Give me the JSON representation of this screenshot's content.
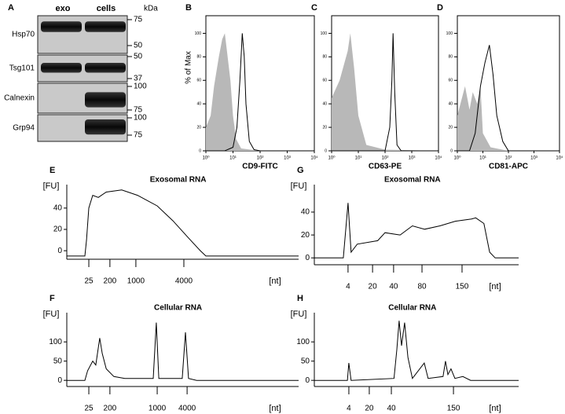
{
  "blot": {
    "label": "A",
    "columns": [
      "exo",
      "cells"
    ],
    "unit": "kDa",
    "rows": [
      {
        "name": "Hsp70",
        "markers": [
          "75",
          "50"
        ]
      },
      {
        "name": "Tsg101",
        "markers": [
          "50",
          "37"
        ]
      },
      {
        "name": "Calnexin",
        "markers": [
          "100",
          "75"
        ]
      },
      {
        "name": "Grp94",
        "markers": [
          "100",
          "75"
        ]
      }
    ]
  },
  "chart_data": [
    {
      "type": "histogram-overlay",
      "label": "B",
      "xlabel": "CD9-FITC",
      "ylabel": "% of Max",
      "log_x": true,
      "xlim": [
        1,
        10000
      ],
      "xticks": [
        {
          "value": 1,
          "label": "10⁰"
        },
        {
          "value": 10,
          "label": "10¹"
        },
        {
          "value": 100,
          "label": "10²"
        },
        {
          "value": 1000,
          "label": "10³"
        },
        {
          "value": 10000,
          "label": "10⁴"
        }
      ],
      "ylim": [
        0,
        115
      ],
      "yticks": [
        0,
        20,
        40,
        60,
        80,
        100
      ],
      "series": [
        {
          "color": "#b8b8b8",
          "fill": true,
          "x": [
            1,
            1.5,
            2,
            3,
            4,
            5,
            6,
            8,
            10,
            13,
            20,
            100,
            10000
          ],
          "values": [
            20,
            30,
            55,
            80,
            95,
            100,
            85,
            60,
            30,
            10,
            2,
            0,
            0
          ]
        },
        {
          "color": "#000000",
          "fill": false,
          "x": [
            1,
            5,
            10,
            14,
            18,
            22,
            26,
            30,
            40,
            60,
            100,
            10000
          ],
          "values": [
            0,
            0,
            3,
            20,
            60,
            100,
            80,
            40,
            8,
            1,
            0,
            0
          ]
        }
      ]
    },
    {
      "type": "histogram-overlay",
      "label": "C",
      "xlabel": "CD63-PE",
      "log_x": true,
      "xlim": [
        1,
        10000
      ],
      "xticks": [
        {
          "value": 1,
          "label": "10⁰"
        },
        {
          "value": 10,
          "label": "10¹"
        },
        {
          "value": 100,
          "label": "10²"
        },
        {
          "value": 1000,
          "label": "10³"
        },
        {
          "value": 10000,
          "label": "10⁴"
        }
      ],
      "ylim": [
        0,
        115
      ],
      "yticks": [
        0,
        20,
        40,
        60,
        80,
        100
      ],
      "series": [
        {
          "color": "#b8b8b8",
          "fill": true,
          "x": [
            1,
            2,
            4,
            5,
            7,
            10,
            20,
            100,
            10000
          ],
          "values": [
            45,
            60,
            85,
            100,
            70,
            30,
            5,
            1,
            0
          ]
        },
        {
          "color": "#000000",
          "fill": false,
          "x": [
            1,
            100,
            150,
            180,
            200,
            230,
            280,
            400,
            10000
          ],
          "values": [
            0,
            0,
            20,
            60,
            100,
            50,
            5,
            0,
            0
          ]
        }
      ]
    },
    {
      "type": "histogram-overlay",
      "label": "D",
      "xlabel": "CD81-APC",
      "log_x": true,
      "xlim": [
        1,
        10000
      ],
      "xticks": [
        {
          "value": 1,
          "label": "10⁰"
        },
        {
          "value": 10,
          "label": "10¹"
        },
        {
          "value": 100,
          "label": "10²"
        },
        {
          "value": 1000,
          "label": "10³"
        },
        {
          "value": 10000,
          "label": "10⁴"
        }
      ],
      "ylim": [
        0,
        115
      ],
      "yticks": [
        0,
        20,
        40,
        60,
        80,
        100
      ],
      "series": [
        {
          "color": "#b8b8b8",
          "fill": true,
          "x": [
            1,
            2,
            3,
            4,
            6,
            8,
            10,
            20,
            100,
            10000
          ],
          "values": [
            30,
            55,
            35,
            50,
            40,
            55,
            15,
            3,
            0,
            0
          ]
        },
        {
          "color": "#000000",
          "fill": false,
          "x": [
            1,
            3,
            5,
            8,
            12,
            18,
            25,
            35,
            60,
            100,
            10000
          ],
          "values": [
            0,
            0,
            15,
            55,
            75,
            90,
            65,
            30,
            8,
            0,
            0
          ]
        }
      ]
    },
    {
      "type": "electropherogram",
      "label": "E",
      "title": "Exosomal RNA",
      "ylabel": "[FU]",
      "xlabel": "[nt]",
      "xlim": [
        0,
        100
      ],
      "xticks": [
        {
          "value": 9.5,
          "label": "25"
        },
        {
          "value": 18.6,
          "label": "200"
        },
        {
          "value": 29.8,
          "label": "1000"
        },
        {
          "value": 50.5,
          "label": "4000"
        }
      ],
      "ylim": [
        -8,
        62
      ],
      "yticks": [
        0,
        20,
        40
      ],
      "series": [
        {
          "color": "#000000",
          "fill": false,
          "x": [
            0,
            7.8,
            8.5,
            9.5,
            11.2,
            13.6,
            17,
            23.7,
            30.5,
            39,
            45.8,
            52.5,
            57.6,
            60,
            100
          ],
          "values": [
            -5,
            -5,
            10,
            40,
            52,
            50,
            55,
            57,
            52,
            42,
            28,
            12,
            0,
            -5,
            -5
          ]
        }
      ]
    },
    {
      "type": "electropherogram",
      "label": "F",
      "title": "Cellular RNA",
      "ylabel": "[FU]",
      "xlabel": "[nt]",
      "xlim": [
        0,
        100
      ],
      "xticks": [
        {
          "value": 9.5,
          "label": "25"
        },
        {
          "value": 18.6,
          "label": "200"
        },
        {
          "value": 39,
          "label": "1000"
        },
        {
          "value": 51.9,
          "label": "4000"
        }
      ],
      "ylim": [
        -16,
        176
      ],
      "yticks": [
        0,
        50,
        100
      ],
      "series": [
        {
          "color": "#000000",
          "fill": false,
          "x": [
            0,
            7.8,
            9,
            11.2,
            12.5,
            14.2,
            15.3,
            17,
            20.3,
            25,
            37.3,
            38.6,
            39.7,
            49.8,
            51.2,
            52.5,
            56,
            100
          ],
          "values": [
            0,
            0,
            25,
            50,
            40,
            110,
            70,
            30,
            10,
            5,
            5,
            150,
            5,
            5,
            125,
            5,
            0,
            0
          ]
        }
      ]
    },
    {
      "type": "electropherogram",
      "label": "G",
      "title": "Exosomal RNA",
      "ylabel": "[FU]",
      "xlabel": "[nt]",
      "xlim": [
        0,
        100
      ],
      "xticks": [
        {
          "value": 16.5,
          "label": "4"
        },
        {
          "value": 28.5,
          "label": "20"
        },
        {
          "value": 38.8,
          "label": "40"
        },
        {
          "value": 52.7,
          "label": "80"
        },
        {
          "value": 72.3,
          "label": "150"
        }
      ],
      "ylim": [
        -6,
        64
      ],
      "yticks": [
        0,
        20,
        40
      ],
      "series": [
        {
          "color": "#000000",
          "fill": false,
          "x": [
            0,
            14.2,
            16.5,
            18,
            21,
            31,
            34.6,
            42,
            48,
            54,
            61.5,
            69,
            77,
            79,
            83,
            85.8,
            88.5,
            100
          ],
          "values": [
            0,
            0,
            48,
            5,
            12,
            15,
            22,
            20,
            28,
            25,
            28,
            32,
            34,
            35,
            30,
            5,
            0,
            0
          ]
        }
      ]
    },
    {
      "type": "electropherogram",
      "label": "H",
      "title": "Cellular RNA",
      "ylabel": "[FU]",
      "xlabel": "[nt]",
      "xlim": [
        0,
        100
      ],
      "xticks": [
        {
          "value": 16.9,
          "label": "4"
        },
        {
          "value": 26.9,
          "label": "20"
        },
        {
          "value": 37.7,
          "label": "40"
        },
        {
          "value": 68.1,
          "label": "150"
        }
      ],
      "ylim": [
        -16,
        176
      ],
      "yticks": [
        0,
        50,
        100
      ],
      "series": [
        {
          "color": "#000000",
          "fill": false,
          "x": [
            0,
            16.2,
            16.9,
            18,
            39,
            40.4,
            41.5,
            42.7,
            44.2,
            45.8,
            48,
            53.8,
            55.7,
            63,
            64.2,
            65.4,
            66.9,
            68.8,
            72.7,
            76.5,
            100
          ],
          "values": [
            0,
            0,
            45,
            0,
            5,
            80,
            155,
            90,
            150,
            60,
            5,
            45,
            5,
            10,
            50,
            15,
            30,
            5,
            10,
            0,
            0
          ]
        }
      ]
    }
  ]
}
